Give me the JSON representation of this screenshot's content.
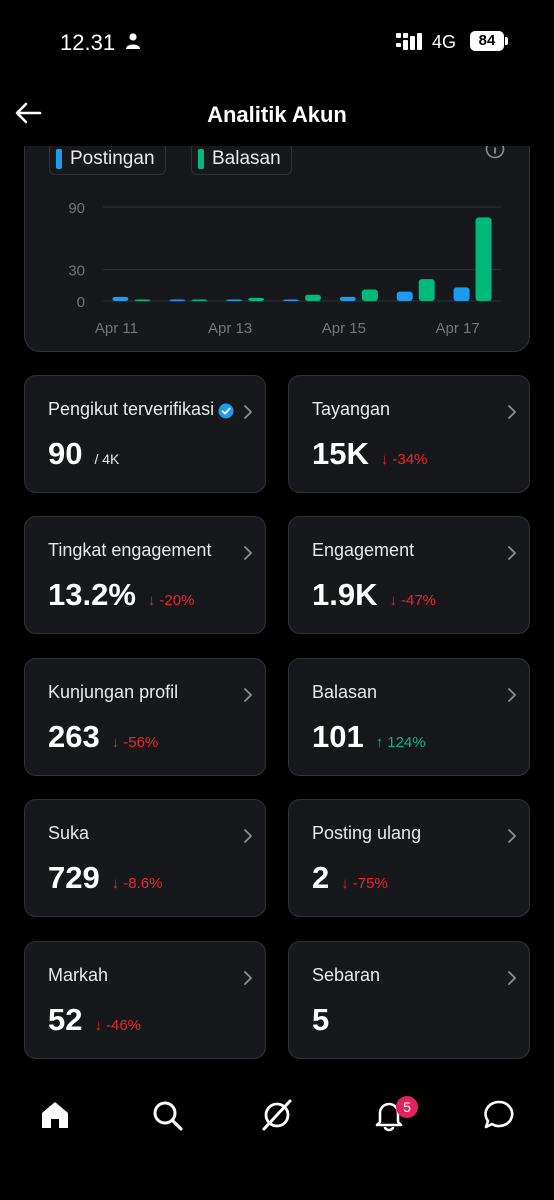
{
  "status_bar": {
    "time": "12.31",
    "network": "4G",
    "battery": "84"
  },
  "header": {
    "title": "Analitik Akun"
  },
  "chart_data": {
    "type": "bar",
    "legend": [
      {
        "name": "Postingan",
        "color": "#1d9bf0"
      },
      {
        "name": "Balasan",
        "color": "#00ba7c"
      }
    ],
    "categories": [
      "Apr 11",
      "Apr 12",
      "Apr 13",
      "Apr 14",
      "Apr 15",
      "Apr 16",
      "Apr 17"
    ],
    "x_tick_labels": [
      "Apr 11",
      "Apr 13",
      "Apr 15",
      "Apr 17"
    ],
    "y_ticks": [
      "0",
      "30",
      "90"
    ],
    "ylim": [
      0,
      96
    ],
    "series": [
      {
        "name": "Postingan",
        "values": [
          4,
          0,
          1,
          1,
          4,
          9,
          13
        ]
      },
      {
        "name": "Balasan",
        "values": [
          1,
          1,
          3,
          6,
          11,
          21,
          80
        ]
      }
    ],
    "grid": true
  },
  "metrics": [
    {
      "label": "Pengikut terverifikasi",
      "value": "90",
      "sub": "/ 4K",
      "verified": true
    },
    {
      "label": "Tayangan",
      "value": "15K",
      "delta": "-34%",
      "dir": "down"
    },
    {
      "label": "Tingkat engagement",
      "value": "13.2%",
      "delta": "-20%",
      "dir": "down"
    },
    {
      "label": "Engagement",
      "value": "1.9K",
      "delta": "-47%",
      "dir": "down"
    },
    {
      "label": "Kunjungan profil",
      "value": "263",
      "delta": "-56%",
      "dir": "down"
    },
    {
      "label": "Balasan",
      "value": "101",
      "delta": "124%",
      "dir": "up"
    },
    {
      "label": "Suka",
      "value": "729",
      "delta": "-8.6%",
      "dir": "down"
    },
    {
      "label": "Posting ulang",
      "value": "2",
      "delta": "-75%",
      "dir": "down"
    },
    {
      "label": "Markah",
      "value": "52",
      "delta": "-46%",
      "dir": "down"
    },
    {
      "label": "Sebaran",
      "value": "5"
    }
  ],
  "delta_arrows": {
    "down": "↓",
    "up": "↑"
  },
  "nav": {
    "items": [
      "home-icon",
      "search-icon",
      "grok-icon",
      "notifications-icon",
      "messages-icon"
    ],
    "notification_badge": "5"
  },
  "colors": {
    "card_bg": "#16181c",
    "border": "#2f3336",
    "accent_blue": "#1d9bf0",
    "accent_green": "#00ba7c",
    "negative": "#f4212e"
  }
}
